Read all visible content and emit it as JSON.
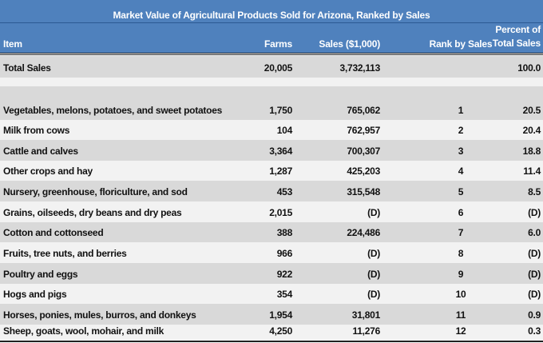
{
  "title": "Market Value of Agricultural Products Sold for Arizona, Ranked by Sales",
  "headers": {
    "item": "Item",
    "farms": "Farms",
    "sales": "Sales ($1,000)",
    "rank": "Rank by Sales",
    "percent_line1": "Percent of",
    "percent_line2": "Total Sales"
  },
  "colors": {
    "header": "#4f81bd",
    "row_dark": "#d9d9d9",
    "row_light": "#f2f2f2"
  },
  "rows": [
    {
      "item": "Total Sales",
      "farms": "20,005",
      "sales": "3,732,113",
      "rank": "",
      "percent": "100.0"
    },
    {
      "item": "",
      "farms": "",
      "sales": "",
      "rank": "",
      "percent": ""
    },
    {
      "item": "Vegetables, melons, potatoes, and sweet potatoes",
      "farms": "1,750",
      "sales": "765,062",
      "rank": "1",
      "percent": "20.5"
    },
    {
      "item": "Milk from cows",
      "farms": "104",
      "sales": "762,957",
      "rank": "2",
      "percent": "20.4"
    },
    {
      "item": "Cattle and calves",
      "farms": "3,364",
      "sales": "700,307",
      "rank": "3",
      "percent": "18.8"
    },
    {
      "item": "Other crops and hay",
      "farms": "1,287",
      "sales": "425,203",
      "rank": "4",
      "percent": "11.4"
    },
    {
      "item": "Nursery, greenhouse, floriculture, and sod",
      "farms": "453",
      "sales": "315,548",
      "rank": "5",
      "percent": "8.5"
    },
    {
      "item": "Grains, oilseeds, dry beans and dry peas",
      "farms": "2,015",
      "sales": "(D)",
      "rank": "6",
      "percent": "(D)"
    },
    {
      "item": "Cotton and cottonseed",
      "farms": "388",
      "sales": "224,486",
      "rank": "7",
      "percent": "6.0"
    },
    {
      "item": "Fruits, tree nuts, and berries",
      "farms": "966",
      "sales": "(D)",
      "rank": "8",
      "percent": "(D)"
    },
    {
      "item": "Poultry and eggs",
      "farms": "922",
      "sales": "(D)",
      "rank": "9",
      "percent": "(D)"
    },
    {
      "item": "Hogs and pigs",
      "farms": "354",
      "sales": "(D)",
      "rank": "10",
      "percent": "(D)"
    },
    {
      "item": "Horses, ponies, mules, burros, and donkeys",
      "farms": "1,954",
      "sales": "31,801",
      "rank": "11",
      "percent": "0.9"
    },
    {
      "item": "Sheep, goats, wool, mohair, and milk",
      "farms": "4,250",
      "sales": "11,276",
      "rank": "12",
      "percent": "0.3"
    }
  ]
}
